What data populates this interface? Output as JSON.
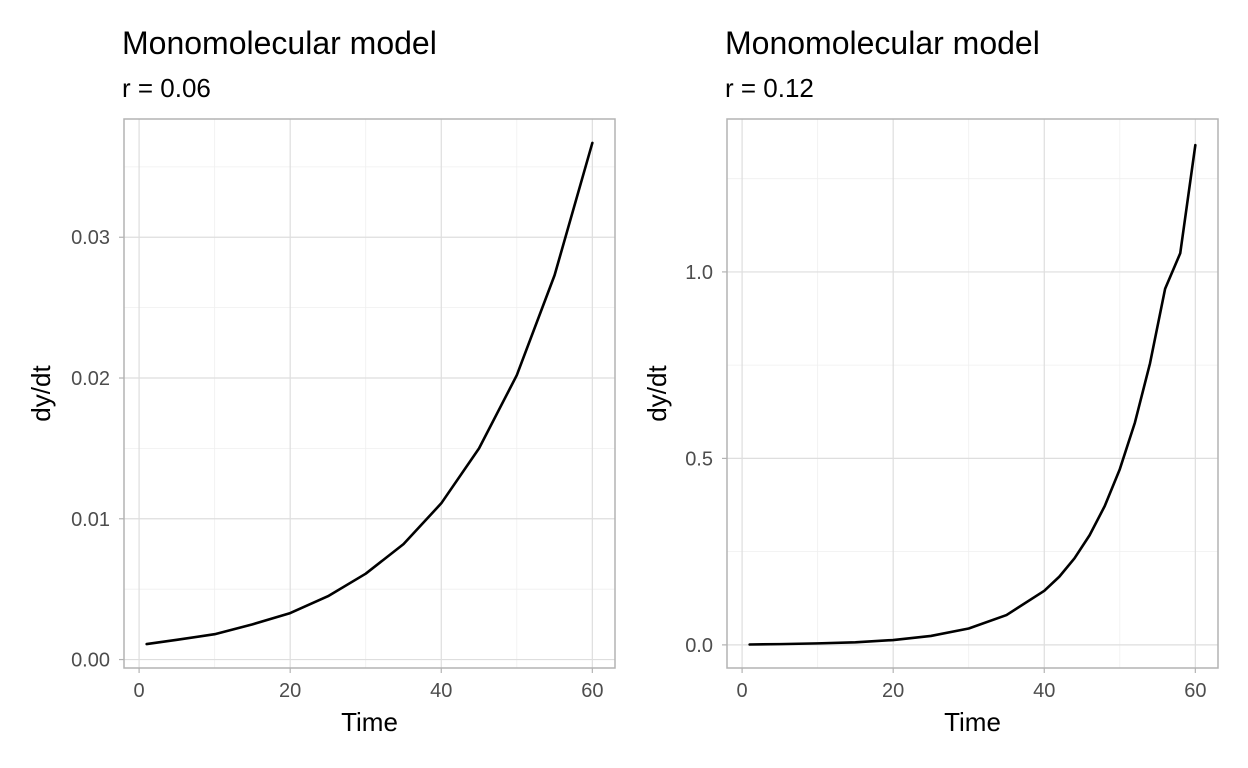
{
  "chart_data": [
    {
      "type": "line",
      "title": "Monomolecular model",
      "subtitle": "r = 0.06",
      "xlabel": "Time",
      "ylabel": "dy/dt",
      "xlim": [
        -2,
        63
      ],
      "ylim": [
        -0.0006,
        0.0384
      ],
      "x_ticks": [
        0,
        20,
        40,
        60
      ],
      "x_tick_labels": [
        "0",
        "20",
        "40",
        "60"
      ],
      "y_ticks": [
        0,
        0.01,
        0.02,
        0.03
      ],
      "y_tick_labels": [
        "0.00",
        "0.01",
        "0.02",
        "0.03"
      ],
      "grid": true,
      "series": [
        {
          "color": "#000000",
          "x": [
            1,
            5,
            10,
            15,
            20,
            25,
            30,
            35,
            40,
            45,
            50,
            55,
            60
          ],
          "y": [
            0.0011,
            0.0014,
            0.0018,
            0.0025,
            0.0033,
            0.0045,
            0.0061,
            0.0082,
            0.0111,
            0.015,
            0.0202,
            0.0273,
            0.0367
          ]
        }
      ]
    },
    {
      "type": "line",
      "title": "Monomolecular model",
      "subtitle": "r = 0.12",
      "xlabel": "Time",
      "ylabel": "dy/dt",
      "xlim": [
        -2,
        63
      ],
      "ylim": [
        -0.062,
        1.41
      ],
      "x_ticks": [
        0,
        20,
        40,
        60
      ],
      "x_tick_labels": [
        "0",
        "20",
        "40",
        "60"
      ],
      "y_ticks": [
        0,
        0.5,
        1
      ],
      "y_tick_labels": [
        "0.0",
        "0.5",
        "1.0"
      ],
      "grid": true,
      "series": [
        {
          "color": "#000000",
          "x": [
            1,
            5,
            10,
            15,
            20,
            25,
            30,
            35,
            40,
            42,
            44,
            46,
            48,
            50,
            52,
            54,
            56,
            58,
            60
          ],
          "y": [
            0.001,
            0.002,
            0.004,
            0.007,
            0.013,
            0.024,
            0.044,
            0.08,
            0.145,
            0.183,
            0.232,
            0.294,
            0.372,
            0.471,
            0.596,
            0.755,
            0.955,
            1.05,
            1.34
          ]
        }
      ]
    }
  ]
}
